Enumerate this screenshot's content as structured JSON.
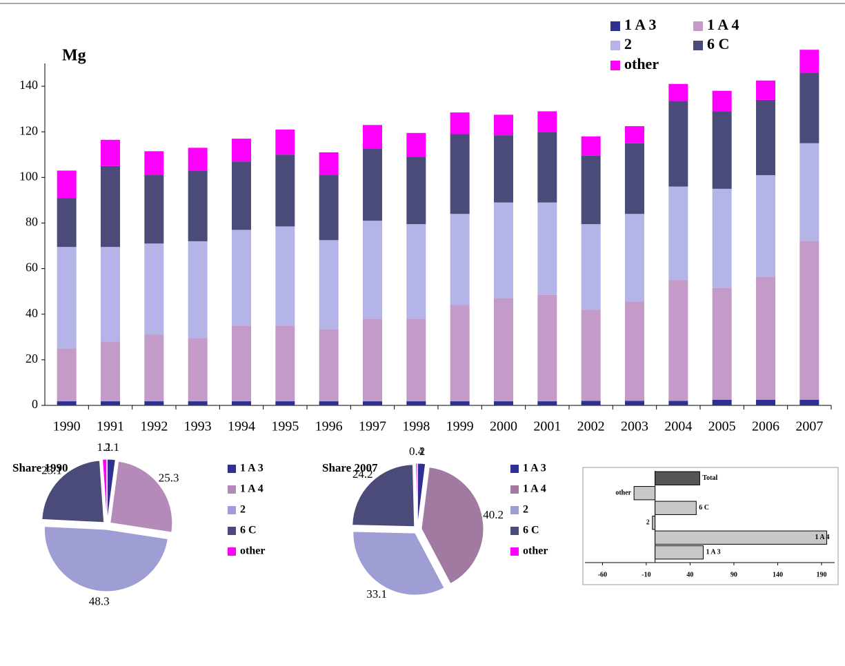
{
  "chart_data": [
    {
      "type": "stacked-bar",
      "ylabel": "Mg",
      "ylim": [
        0,
        150
      ],
      "yticks": [
        0,
        20,
        40,
        60,
        80,
        100,
        120,
        140
      ],
      "grid": false,
      "legend": "top-right",
      "categories": [
        "1990",
        "1991",
        "1992",
        "1993",
        "1994",
        "1995",
        "1996",
        "1997",
        "1998",
        "1999",
        "2000",
        "2001",
        "2002",
        "2003",
        "2004",
        "2005",
        "2006",
        "2007"
      ],
      "series": [
        {
          "name": "1 A 3",
          "color": "#2e3192",
          "values": [
            1.8,
            1.8,
            1.8,
            1.8,
            1.8,
            1.8,
            1.8,
            1.8,
            1.8,
            1.8,
            1.8,
            1.8,
            2,
            2,
            2,
            2.5,
            2.5,
            2.5
          ]
        },
        {
          "name": "1 A 4",
          "color": "#c49ac8",
          "values": [
            23.2,
            26.2,
            29.2,
            27.7,
            33.2,
            33.2,
            31.7,
            36.2,
            36.2,
            42.2,
            45.2,
            46.7,
            40,
            43.5,
            53,
            49,
            54,
            69.5
          ]
        },
        {
          "name": "2",
          "color": "#b4b4e8",
          "values": [
            44.5,
            41.5,
            40,
            42.5,
            42,
            43.5,
            39,
            43,
            41.5,
            40,
            42,
            40.5,
            37.5,
            38.5,
            41,
            43.5,
            44.5,
            43
          ]
        },
        {
          "name": "6 C",
          "color": "#4b4b7a",
          "values": [
            21.5,
            35.5,
            30,
            31,
            30,
            31.5,
            28.5,
            31.5,
            29.5,
            35,
            29.5,
            31,
            30,
            31,
            37.5,
            34,
            33,
            31
          ]
        },
        {
          "name": "other",
          "color": "#ff00ff",
          "values": [
            12,
            11.5,
            10.5,
            10,
            10,
            11,
            10,
            10.5,
            10.5,
            9.5,
            9,
            9,
            8.5,
            7.5,
            7.5,
            9,
            8.5,
            10
          ]
        }
      ]
    },
    {
      "type": "pie",
      "title": "Share 1990",
      "categories": [
        "1 A 3",
        "1 A 4",
        "2",
        "6 C",
        "other"
      ],
      "values": [
        2.1,
        25.3,
        48.3,
        23.1,
        1.1
      ],
      "colors": [
        "#2e3192",
        "#b38ab8",
        "#9e9ed4",
        "#4b4b7a",
        "#ff00ff"
      ]
    },
    {
      "type": "pie",
      "title": "Share 2007",
      "categories": [
        "1 A 3",
        "1 A 4",
        "2",
        "6 C",
        "other"
      ],
      "values": [
        2,
        40.2,
        33.1,
        24.2,
        0.4
      ],
      "colors": [
        "#2e3192",
        "#a07aa0",
        "#9e9ed4",
        "#4b4b7a",
        "#ff00ff"
      ]
    },
    {
      "type": "hbar",
      "categories": [
        "1 A 3",
        "1 A 4",
        "2",
        "6 C",
        "other",
        "Total"
      ],
      "values": [
        55,
        196,
        -3,
        47,
        -24,
        51
      ],
      "colors": [
        "#c8c8c8",
        "#c8c8c8",
        "#c8c8c8",
        "#c8c8c8",
        "#c8c8c8",
        "#555555"
      ],
      "xlim": [
        -80,
        205
      ],
      "xticks": [
        -60,
        -10,
        40,
        90,
        140,
        190
      ]
    }
  ]
}
